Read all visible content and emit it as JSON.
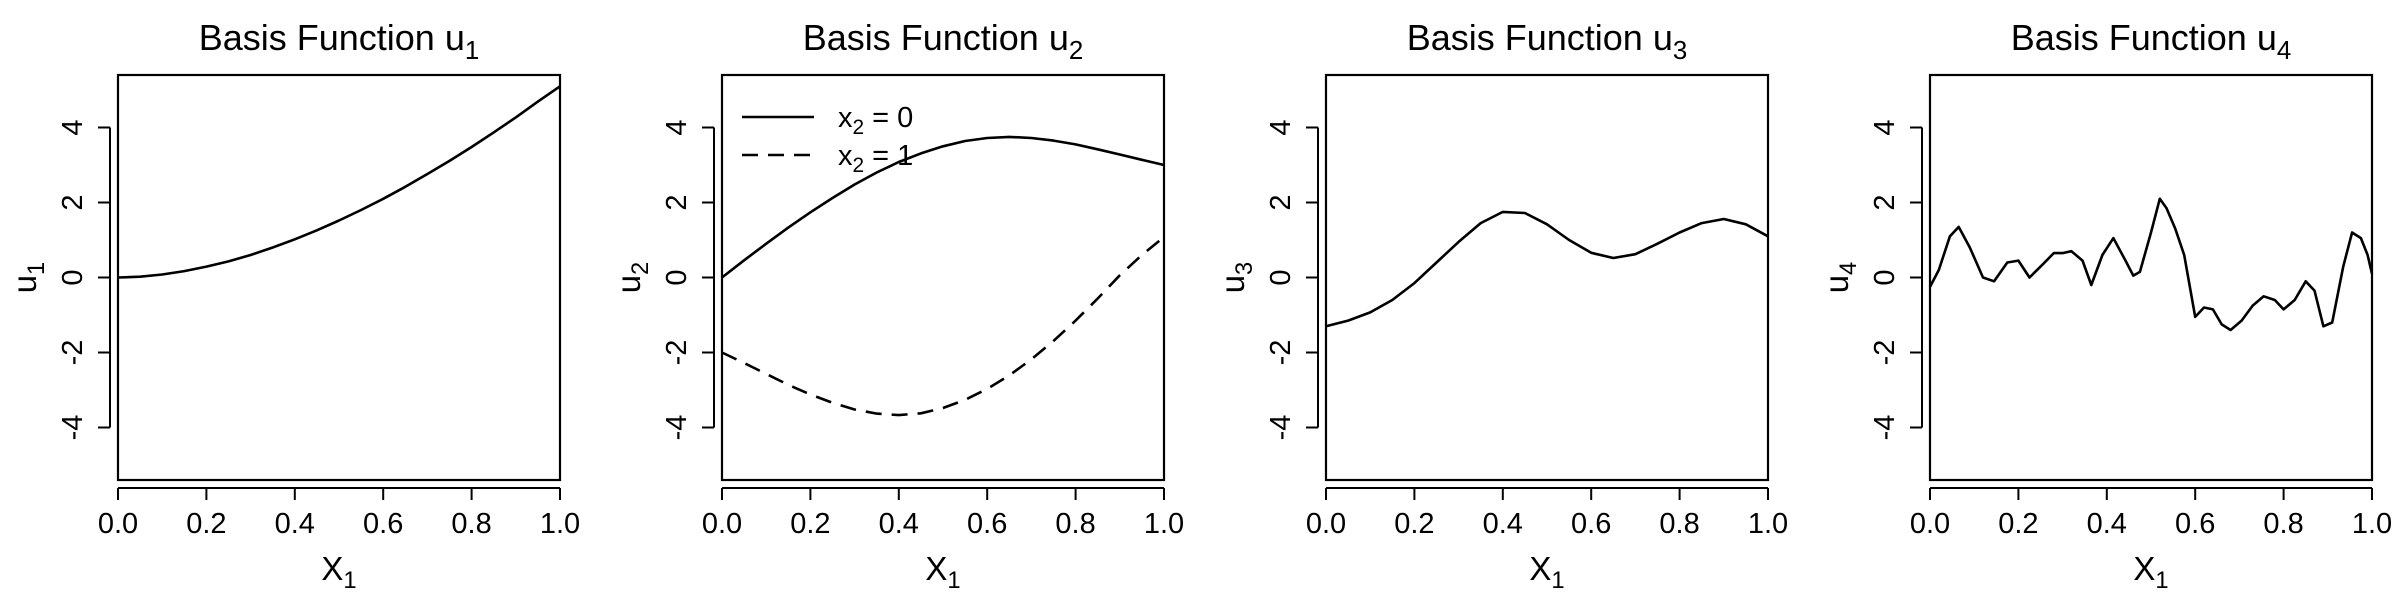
{
  "chart_data": [
    {
      "type": "line",
      "title": {
        "main": "Basis Function u",
        "sub": "1"
      },
      "xlabel": {
        "main": "X",
        "sub": "1"
      },
      "ylabel": {
        "main": "u",
        "sub": "1"
      },
      "xlim": [
        0,
        1
      ],
      "ylim": [
        -5.4,
        5.4
      ],
      "xticks": [
        "0.0",
        "0.2",
        "0.4",
        "0.6",
        "0.8",
        "1.0"
      ],
      "yticks": [
        "-4",
        "-2",
        "0",
        "2",
        "4"
      ],
      "grid": false,
      "series": [
        {
          "style": "solid",
          "x": [
            0,
            0.05,
            0.1,
            0.15,
            0.2,
            0.25,
            0.3,
            0.35,
            0.4,
            0.45,
            0.5,
            0.55,
            0.6,
            0.65,
            0.7,
            0.75,
            0.8,
            0.85,
            0.9,
            0.95,
            1.0
          ],
          "y": [
            0,
            0.022,
            0.08,
            0.17,
            0.29,
            0.43,
            0.6,
            0.8,
            1.02,
            1.26,
            1.52,
            1.8,
            2.1,
            2.42,
            2.76,
            3.11,
            3.48,
            3.87,
            4.27,
            4.69,
            5.1
          ]
        }
      ]
    },
    {
      "type": "line",
      "title": {
        "main": "Basis Function u",
        "sub": "2"
      },
      "xlabel": {
        "main": "X",
        "sub": "1"
      },
      "ylabel": {
        "main": "u",
        "sub": "2"
      },
      "xlim": [
        0,
        1
      ],
      "ylim": [
        -5.4,
        5.4
      ],
      "xticks": [
        "0.0",
        "0.2",
        "0.4",
        "0.6",
        "0.8",
        "1.0"
      ],
      "yticks": [
        "-4",
        "-2",
        "0",
        "2",
        "4"
      ],
      "grid": false,
      "legend": {
        "position": "top-left",
        "entries": [
          {
            "main": "x",
            "sub": "2",
            "rest": " = 0",
            "style": "solid"
          },
          {
            "main": "x",
            "sub": "2",
            "rest": " = 1",
            "style": "dashed"
          }
        ]
      },
      "series": [
        {
          "style": "solid",
          "x": [
            0,
            0.05,
            0.1,
            0.15,
            0.2,
            0.25,
            0.3,
            0.35,
            0.4,
            0.45,
            0.5,
            0.55,
            0.6,
            0.65,
            0.7,
            0.75,
            0.8,
            0.85,
            0.9,
            0.95,
            1.0
          ],
          "y": [
            0,
            0.46,
            0.9,
            1.33,
            1.74,
            2.12,
            2.48,
            2.8,
            3.08,
            3.31,
            3.5,
            3.64,
            3.72,
            3.75,
            3.72,
            3.65,
            3.55,
            3.42,
            3.28,
            3.14,
            3.0
          ]
        },
        {
          "style": "dashed",
          "x": [
            0,
            0.05,
            0.1,
            0.15,
            0.2,
            0.25,
            0.3,
            0.35,
            0.4,
            0.45,
            0.5,
            0.55,
            0.6,
            0.65,
            0.7,
            0.75,
            0.8,
            0.85,
            0.9,
            0.95,
            1.0
          ],
          "y": [
            -2.0,
            -2.28,
            -2.57,
            -2.86,
            -3.12,
            -3.34,
            -3.52,
            -3.63,
            -3.67,
            -3.62,
            -3.48,
            -3.26,
            -2.97,
            -2.61,
            -2.18,
            -1.69,
            -1.15,
            -0.56,
            0.06,
            0.6,
            1.08
          ]
        }
      ]
    },
    {
      "type": "line",
      "title": {
        "main": "Basis Function u",
        "sub": "3"
      },
      "xlabel": {
        "main": "X",
        "sub": "1"
      },
      "ylabel": {
        "main": "u",
        "sub": "3"
      },
      "xlim": [
        0,
        1
      ],
      "ylim": [
        -5.4,
        5.4
      ],
      "xticks": [
        "0.0",
        "0.2",
        "0.4",
        "0.6",
        "0.8",
        "1.0"
      ],
      "yticks": [
        "-4",
        "-2",
        "0",
        "2",
        "4"
      ],
      "grid": false,
      "series": [
        {
          "style": "solid",
          "x": [
            0,
            0.05,
            0.1,
            0.15,
            0.2,
            0.25,
            0.3,
            0.35,
            0.4,
            0.45,
            0.5,
            0.55,
            0.6,
            0.65,
            0.7,
            0.75,
            0.8,
            0.85,
            0.9,
            0.95,
            1.0
          ],
          "y": [
            -1.3,
            -1.15,
            -0.93,
            -0.6,
            -0.15,
            0.4,
            0.95,
            1.45,
            1.75,
            1.72,
            1.42,
            1.0,
            0.66,
            0.52,
            0.62,
            0.9,
            1.2,
            1.45,
            1.56,
            1.42,
            1.1
          ]
        }
      ]
    },
    {
      "type": "line",
      "title": {
        "main": "Basis Function u",
        "sub": "4"
      },
      "xlabel": {
        "main": "X",
        "sub": "1"
      },
      "ylabel": {
        "main": "u",
        "sub": "4"
      },
      "xlim": [
        0,
        1
      ],
      "ylim": [
        -5.4,
        5.4
      ],
      "xticks": [
        "0.0",
        "0.2",
        "0.4",
        "0.6",
        "0.8",
        "1.0"
      ],
      "yticks": [
        "-4",
        "-2",
        "0",
        "2",
        "4"
      ],
      "grid": false,
      "series": [
        {
          "style": "solid",
          "x": [
            0,
            0.02,
            0.045,
            0.065,
            0.09,
            0.12,
            0.145,
            0.175,
            0.2,
            0.225,
            0.255,
            0.28,
            0.3,
            0.32,
            0.345,
            0.365,
            0.39,
            0.415,
            0.44,
            0.46,
            0.475,
            0.5,
            0.52,
            0.535,
            0.555,
            0.575,
            0.6,
            0.62,
            0.64,
            0.66,
            0.68,
            0.705,
            0.73,
            0.755,
            0.78,
            0.8,
            0.825,
            0.85,
            0.87,
            0.89,
            0.91,
            0.935,
            0.955,
            0.975,
            0.99,
            1.0
          ],
          "y": [
            -0.25,
            0.2,
            1.1,
            1.35,
            0.8,
            0.0,
            -0.1,
            0.4,
            0.45,
            0.0,
            0.35,
            0.65,
            0.65,
            0.7,
            0.45,
            -0.2,
            0.6,
            1.05,
            0.5,
            0.05,
            0.15,
            1.2,
            2.1,
            1.85,
            1.3,
            0.6,
            -1.05,
            -0.8,
            -0.85,
            -1.25,
            -1.4,
            -1.15,
            -0.75,
            -0.5,
            -0.6,
            -0.85,
            -0.6,
            -0.1,
            -0.35,
            -1.3,
            -1.2,
            0.3,
            1.2,
            1.05,
            0.6,
            0.1
          ]
        }
      ]
    }
  ]
}
